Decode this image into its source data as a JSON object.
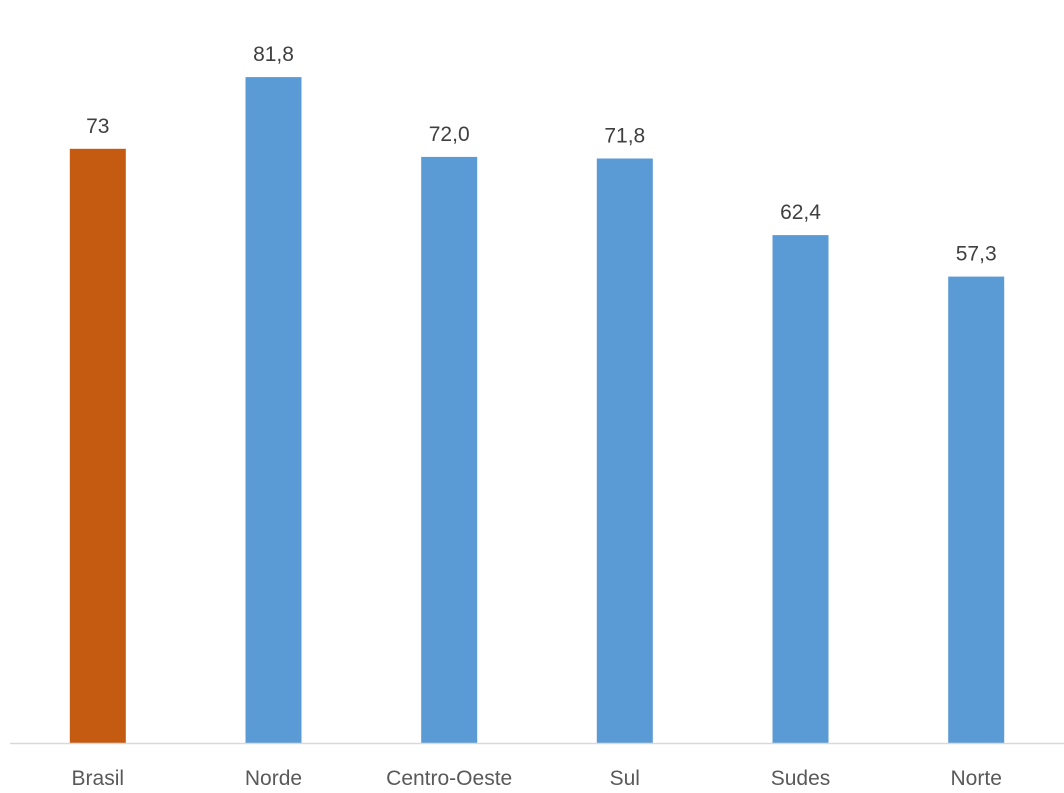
{
  "chart_data": {
    "type": "bar",
    "categories": [
      "Brasil",
      "Norde",
      "Centro-Oeste",
      "Sul",
      "Sudes",
      "Norte"
    ],
    "values": [
      73,
      81.8,
      72.0,
      71.8,
      62.4,
      57.3
    ],
    "value_labels": [
      "73",
      "81,8",
      "72,0",
      "71,8",
      "62,4",
      "57,3"
    ],
    "ylim": [
      0,
      90
    ],
    "grid": false,
    "colors": [
      "#C55A11",
      "#5B9BD5",
      "#5B9BD5",
      "#5B9BD5",
      "#5B9BD5",
      "#5B9BD5"
    ],
    "axis_color": "#D9D9D9"
  }
}
